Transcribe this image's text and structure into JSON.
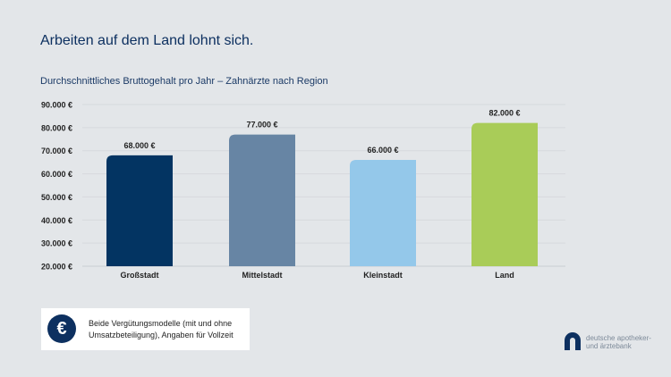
{
  "title": "Arbeiten auf dem Land lohnt sich.",
  "chart_data": {
    "type": "bar",
    "title": "Durchschnittliches Bruttogehalt pro Jahr – Zahnärzte nach Region",
    "categories": [
      "Großstadt",
      "Mittelstadt",
      "Kleinstadt",
      "Land"
    ],
    "values": [
      68000,
      77000,
      66000,
      82000
    ],
    "data_labels": [
      "68.000 €",
      "77.000 €",
      "66.000 €",
      "82.000 €"
    ],
    "colors": [
      "#033462",
      "#6785a4",
      "#94c8ea",
      "#a9cc58"
    ],
    "ylim": [
      20000,
      90000
    ],
    "yticks": [
      20000,
      30000,
      40000,
      50000,
      60000,
      70000,
      80000,
      90000
    ],
    "ytick_labels": [
      "20.000 €",
      "30.000 €",
      "40.000 €",
      "50.000 €",
      "60.000 €",
      "70.000 €",
      "80.000 €",
      "90.000 €"
    ],
    "grid": true
  },
  "note": {
    "icon": "euro-icon",
    "text_line1": "Beide Vergütungsmodelle (mit und ohne",
    "text_line2": "Umsatzbeteiligung), Angaben für Vollzeit"
  },
  "logo": {
    "line1": "deutsche apotheker-",
    "line2": "und ärztebank",
    "color": "#0d3060"
  }
}
